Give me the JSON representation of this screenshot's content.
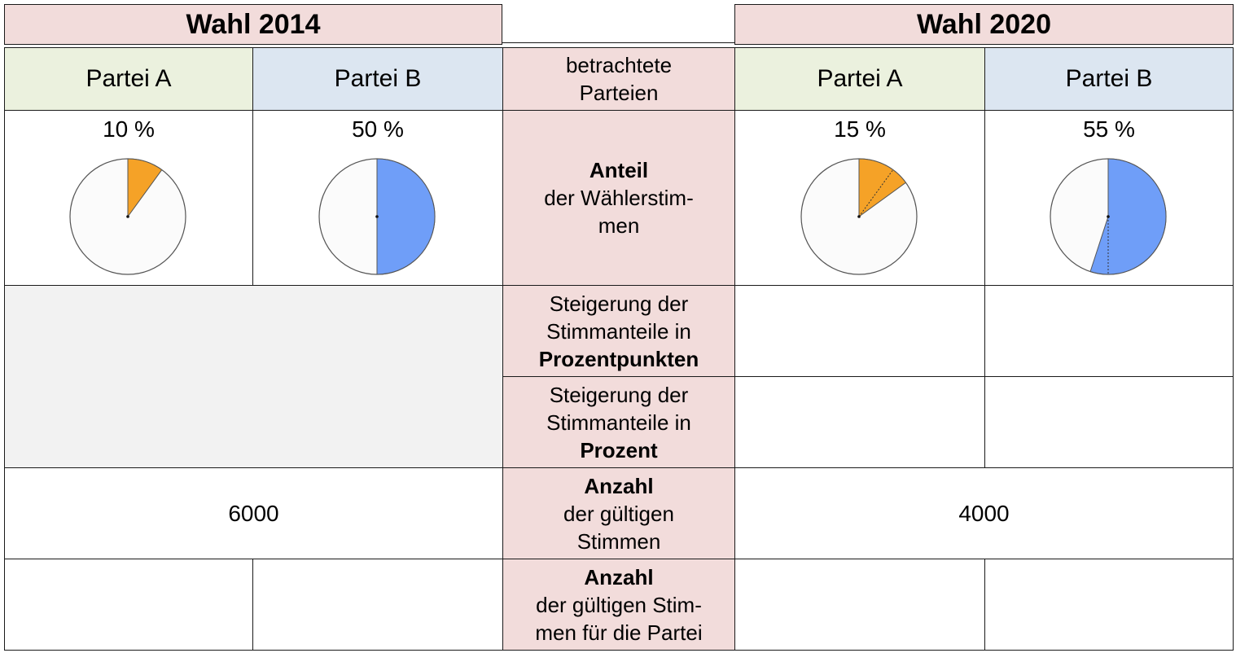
{
  "headers": {
    "year_left": "Wahl 2014",
    "year_right": "Wahl 2020"
  },
  "parties": {
    "left_a": "Partei A",
    "left_b": "Partei B",
    "right_a": "Partei A",
    "right_b": "Partei B"
  },
  "middle": {
    "considered_line1": "betrachtete",
    "considered_line2": "Parteien",
    "share_bold": "Anteil",
    "share_line2": "der Wählerstim-",
    "share_line3": "men",
    "increase_pp_line1": "Steigerung der",
    "increase_pp_line2": "Stimmanteile in",
    "increase_pp_bold": "Prozentpunkten",
    "increase_pct_line1": "Steigerung der",
    "increase_pct_line2": "Stimmanteile in",
    "increase_pct_bold": "Prozent",
    "count_bold": "Anzahl",
    "count_line2": "der gültigen",
    "count_line3": "Stimmen",
    "party_count_bold": "Anzahl",
    "party_count_line2": "der gültigen Stim-",
    "party_count_line3": "men für die Partei"
  },
  "shares": {
    "left_a": "10 %",
    "left_b": "50 %",
    "right_a": "15 %",
    "right_b": "55 %"
  },
  "pies": [
    {
      "id": "pie-2014-a",
      "value": 10,
      "color": "#f5a227",
      "inner_mark": null
    },
    {
      "id": "pie-2014-b",
      "value": 50,
      "color": "#6f9ef8",
      "inner_mark": null
    },
    {
      "id": "pie-2020-a",
      "value": 15,
      "color": "#f5a227",
      "inner_mark": 10
    },
    {
      "id": "pie-2020-b",
      "value": 55,
      "color": "#6f9ef8",
      "inner_mark": 50
    }
  ],
  "counts": {
    "total_2014": "6000",
    "total_2020": "4000"
  },
  "colors": {
    "header_pink": "#f2dcdb",
    "party_a_green": "#ebf1de",
    "party_b_blue": "#dce6f1",
    "party_a_slice": "#f5a227",
    "party_b_slice": "#6f9ef8"
  }
}
